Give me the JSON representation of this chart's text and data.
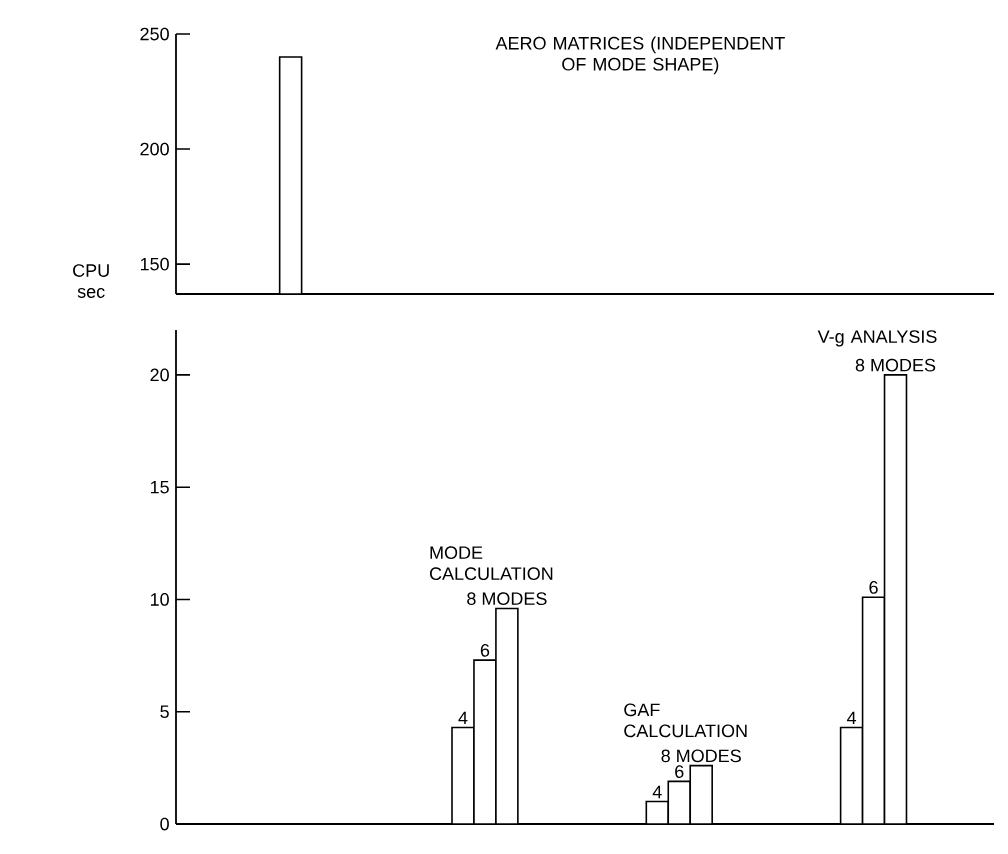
{
  "chart_data": [
    {
      "type": "bar",
      "categories": [
        null
      ],
      "ylabel": "CPU sec",
      "ylim": [
        137,
        250
      ],
      "yticks": [
        150,
        200,
        250
      ],
      "tick_labels": "y",
      "annotations": [
        "AERO MATRICES (INDEPENDENT OF MODE SHAPE)"
      ],
      "series": [
        {
          "color": "#ffffff",
          "values": [
            240
          ]
        }
      ]
    },
    {
      "type": "bar",
      "categories": [
        null,
        null,
        null,
        null
      ],
      "ylim": [
        0,
        22
      ],
      "yticks": [
        0,
        5,
        10,
        15,
        20
      ],
      "tick_labels": "y",
      "annotations": [
        "MODE CALCULATION",
        "GAF CALCULATION",
        "V-g ANALYSIS"
      ],
      "series": [
        {
          "color": "#ffffff",
          "values": [
            null,
            null,
            null,
            null
          ]
        },
        {
          "name": "4",
          "color": "#ffffff",
          "values": [
            null,
            4.3,
            1.0,
            4.3
          ]
        },
        {
          "name": "6",
          "color": "#ffffff",
          "values": [
            null,
            7.3,
            1.9,
            10.1
          ]
        },
        {
          "name": "8 MODES",
          "color": "#ffffff",
          "values": [
            null,
            9.6,
            2.6,
            20
          ]
        }
      ]
    }
  ]
}
